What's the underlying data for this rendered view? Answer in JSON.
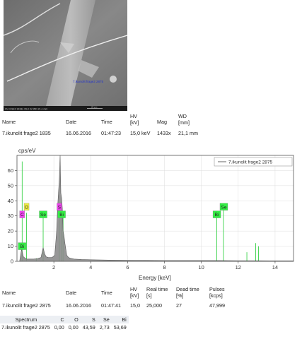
{
  "image": {
    "caption": "7.ikunolit frage2 2875",
    "info_line": "CU 3   SE2  1433x  15,0 kV  WD 21,1 mm",
    "scale_text": "20 µm"
  },
  "image_table": {
    "headers": [
      "Name",
      "Date",
      "Time",
      "HV\n[kV]",
      "Mag",
      "WD\n[mm]"
    ],
    "header_line1": [
      "Name",
      "Date",
      "Time",
      "HV",
      "Mag",
      "WD"
    ],
    "header_line2": [
      "",
      "",
      "",
      "[kV]",
      "",
      "[mm]"
    ],
    "row": [
      "7.ikunolit frage2 1835",
      "16.06.2016",
      "01:47:23",
      "15,0 keV",
      "1433x",
      "21,1 mm"
    ]
  },
  "spectrum_table": {
    "header_line1": [
      "Name",
      "Date",
      "Time",
      "HV",
      "Real time",
      "Dead time",
      "Pulses"
    ],
    "header_line2": [
      "",
      "",
      "",
      "[kV]",
      "[s]",
      "[%]",
      "[kcps]"
    ],
    "row": [
      "7.ikunolit frage2 2875",
      "16.06.2016",
      "01:47:41",
      "15,0",
      "25,000",
      "27",
      "47,999"
    ]
  },
  "composition": {
    "headers": [
      "Spectrum",
      "C",
      "O",
      "S",
      "Se",
      "Bi"
    ],
    "row": [
      "7.ikunolit frage2 2875",
      "0,00",
      "0,00",
      "43,59",
      "2,73",
      "53,69"
    ]
  },
  "colors": {
    "spectrum_fill": "#8c8c8c",
    "spectrum_line": "#4a4a4a",
    "peak_green": "#22cc33",
    "label_green": "#33ee44",
    "label_magenta": "#ee44ee",
    "label_yellow": "#eeee44",
    "axis": "#333333",
    "grid": "#dddddd"
  },
  "chart_data": {
    "type": "area",
    "title": "",
    "ylabel": "cps/eV",
    "xlabel": "Energy [keV]",
    "xlim": [
      0,
      15
    ],
    "ylim": [
      0,
      70
    ],
    "x_ticks": [
      2,
      4,
      6,
      8,
      10,
      12,
      14
    ],
    "y_ticks": [
      0,
      10,
      20,
      30,
      40,
      50,
      60
    ],
    "legend": "7.ikunolit frage2 2875",
    "legend_position": "top-right",
    "grid": true,
    "series": [
      {
        "name": "7.ikunolit frage2 2875",
        "x": [
          0.15,
          0.25,
          0.35,
          0.5,
          0.7,
          0.9,
          1.1,
          1.3,
          1.42,
          1.5,
          1.58,
          1.7,
          1.9,
          2.05,
          2.15,
          2.2,
          2.25,
          2.3,
          2.34,
          2.38,
          2.42,
          2.46,
          2.5,
          2.55,
          2.6,
          2.65,
          2.7,
          2.8,
          2.9,
          3.1,
          3.5,
          4.0,
          5.0,
          6.0,
          7.0,
          8.0,
          9.0,
          10.0,
          11.0,
          12.0,
          13.0,
          14.0,
          15.0
        ],
        "y": [
          0.5,
          8,
          3,
          1.5,
          1.5,
          1.5,
          1.8,
          2.5,
          9,
          5,
          3,
          2.5,
          2.5,
          4,
          20,
          35,
          45,
          55,
          78,
          45,
          42,
          35,
          20,
          17,
          12,
          8,
          4,
          2.5,
          2,
          1.5,
          1.2,
          1,
          0.8,
          0.7,
          0.6,
          0.5,
          0.5,
          0.5,
          0.5,
          0.4,
          0.4,
          0.3,
          0.3
        ]
      }
    ],
    "peak_markers": [
      {
        "x": 0.28,
        "y": 66
      },
      {
        "x": 0.52,
        "y": 32
      },
      {
        "x": 1.42,
        "y": 32
      },
      {
        "x": 2.3,
        "y": 32
      },
      {
        "x": 2.42,
        "y": 32
      },
      {
        "x": 2.5,
        "y": 32
      },
      {
        "x": 10.84,
        "y": 32
      },
      {
        "x": 11.2,
        "y": 36
      },
      {
        "x": 12.47,
        "y": 6
      },
      {
        "x": 12.95,
        "y": 12
      },
      {
        "x": 13.1,
        "y": 10
      },
      {
        "x": 1.05,
        "y": 2
      }
    ],
    "element_labels": [
      {
        "text": "C",
        "x": 0.28,
        "y": 31,
        "color": "magenta"
      },
      {
        "text": "O",
        "x": 0.52,
        "y": 36,
        "color": "yellow"
      },
      {
        "text": "Se",
        "x": 1.42,
        "y": 31,
        "color": "green"
      },
      {
        "text": "S",
        "x": 2.3,
        "y": 36,
        "color": "magenta"
      },
      {
        "text": "Bi",
        "x": 2.42,
        "y": 31,
        "color": "green"
      },
      {
        "text": "Bi",
        "x": 0.28,
        "y": 10,
        "color": "green"
      },
      {
        "text": "Bi",
        "x": 10.84,
        "y": 31,
        "color": "green"
      },
      {
        "text": "Se",
        "x": 11.22,
        "y": 36,
        "color": "green"
      }
    ]
  }
}
